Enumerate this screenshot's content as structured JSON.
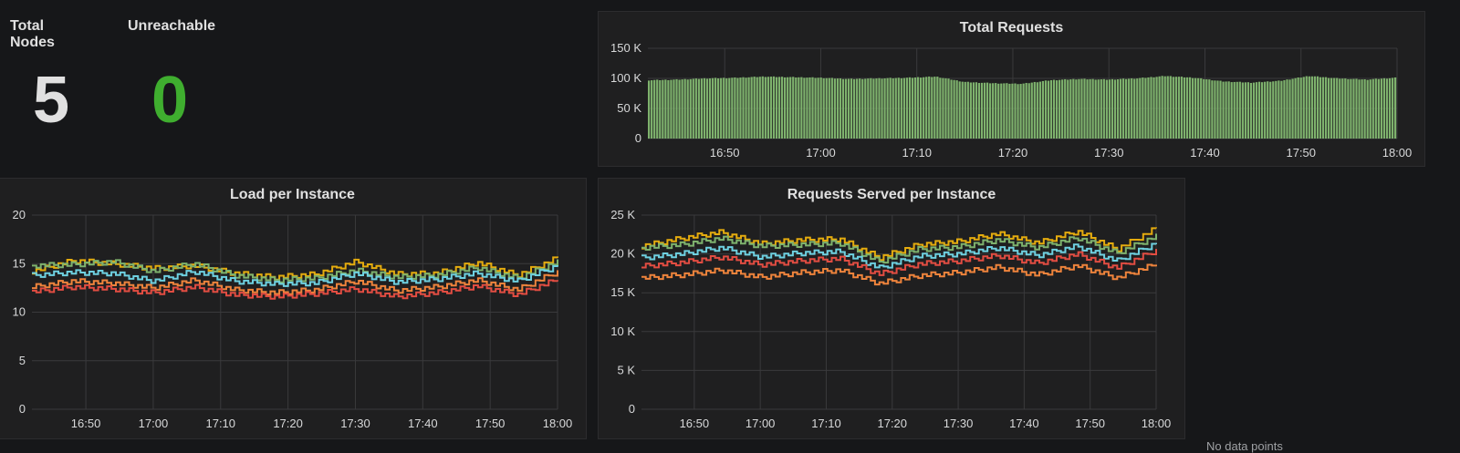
{
  "stats": {
    "total_nodes": {
      "title": "Total Nodes",
      "value": "5",
      "color": "#e0e0e0"
    },
    "unreachable": {
      "title": "Unreachable",
      "value": "0",
      "color": "#3fae2f"
    }
  },
  "time_ticks": [
    "16:50",
    "17:00",
    "17:10",
    "17:20",
    "17:30",
    "17:40",
    "17:50",
    "18:00"
  ],
  "chart_data": [
    {
      "type": "bar",
      "title": "Total Requests",
      "x_range": [
        "16:42",
        "18:00"
      ],
      "ylim": [
        0,
        150000
      ],
      "y_ticks": [
        "0",
        "50 K",
        "100 K",
        "150 K"
      ],
      "color": "#7eb26d",
      "x": [
        "16:42",
        "16:45",
        "16:48",
        "16:51",
        "16:54",
        "16:57",
        "17:00",
        "17:03",
        "17:06",
        "17:09",
        "17:12",
        "17:15",
        "17:18",
        "17:21",
        "17:24",
        "17:27",
        "17:30",
        "17:33",
        "17:36",
        "17:39",
        "17:42",
        "17:45",
        "17:48",
        "17:51",
        "17:54",
        "17:57",
        "18:00"
      ],
      "values": [
        97000,
        98000,
        100000,
        101000,
        103000,
        102000,
        101000,
        99000,
        100000,
        101000,
        103000,
        94000,
        92000,
        91000,
        97000,
        99000,
        98000,
        100000,
        104000,
        101000,
        95000,
        93000,
        96000,
        104000,
        100000,
        98000,
        101000
      ],
      "grid": true
    },
    {
      "type": "line",
      "title": "Load per Instance",
      "x_range": [
        "16:42",
        "18:00"
      ],
      "ylim": [
        0,
        20
      ],
      "y_ticks": [
        "0",
        "5",
        "10",
        "15",
        "20"
      ],
      "x": [
        "16:42",
        "16:48",
        "16:54",
        "17:00",
        "17:06",
        "17:12",
        "17:18",
        "17:24",
        "17:30",
        "17:36",
        "17:42",
        "17:48",
        "17:54",
        "18:00"
      ],
      "series": [
        {
          "color": "#e5ac0e",
          "values": [
            14.2,
            15.3,
            15.0,
            14.5,
            14.8,
            14.0,
            13.6,
            13.9,
            15.2,
            13.9,
            14.0,
            15.1,
            13.8,
            15.6
          ]
        },
        {
          "color": "#7eb26d",
          "values": [
            14.8,
            14.9,
            15.2,
            14.2,
            15.0,
            13.8,
            13.3,
            13.5,
            14.3,
            13.6,
            13.8,
            14.6,
            13.5,
            15.2
          ]
        },
        {
          "color": "#6ed0e0",
          "values": [
            13.8,
            14.1,
            14.0,
            13.2,
            14.2,
            13.2,
            12.9,
            13.0,
            14.0,
            13.1,
            13.4,
            14.0,
            13.2,
            14.8
          ]
        },
        {
          "color": "#ef843c",
          "values": [
            12.6,
            13.2,
            13.0,
            12.5,
            13.3,
            12.3,
            12.0,
            12.3,
            13.2,
            12.2,
            12.6,
            13.3,
            12.3,
            14.2
          ]
        },
        {
          "color": "#e24d42",
          "values": [
            12.1,
            12.6,
            12.4,
            12.0,
            12.6,
            11.8,
            11.6,
            11.9,
            12.4,
            11.6,
            12.0,
            12.7,
            11.8,
            13.4
          ]
        }
      ],
      "grid": true
    },
    {
      "type": "line",
      "title": "Requests Served per Instance",
      "x_range": [
        "16:42",
        "18:00"
      ],
      "ylim": [
        0,
        25000
      ],
      "y_ticks": [
        "0",
        "5 K",
        "10 K",
        "15 K",
        "20 K",
        "25 K"
      ],
      "x": [
        "16:42",
        "16:48",
        "16:54",
        "17:00",
        "17:06",
        "17:12",
        "17:18",
        "17:24",
        "17:30",
        "17:36",
        "17:42",
        "17:48",
        "17:54",
        "18:00"
      ],
      "series": [
        {
          "color": "#e5ac0e",
          "values": [
            21000,
            22000,
            22800,
            21300,
            21800,
            21900,
            19500,
            21200,
            21600,
            22600,
            21400,
            22900,
            20600,
            23300
          ]
        },
        {
          "color": "#7eb26d",
          "values": [
            20800,
            21200,
            22000,
            21000,
            21200,
            21400,
            19000,
            20600,
            20900,
            21800,
            20800,
            22100,
            20100,
            22300
          ]
        },
        {
          "color": "#6ed0e0",
          "values": [
            19500,
            20000,
            20800,
            19600,
            20100,
            20300,
            18200,
            19700,
            20000,
            20800,
            19800,
            21000,
            19100,
            21400
          ]
        },
        {
          "color": "#e24d42",
          "values": [
            18400,
            18900,
            19600,
            18600,
            19100,
            19400,
            17400,
            18700,
            19100,
            19800,
            18800,
            20000,
            18200,
            20500
          ]
        },
        {
          "color": "#ef843c",
          "values": [
            16900,
            17300,
            17900,
            17000,
            17600,
            17900,
            16200,
            17200,
            17600,
            18300,
            17300,
            18500,
            16900,
            18700
          ]
        }
      ],
      "grid": true
    }
  ],
  "overflow_text": "No data points"
}
